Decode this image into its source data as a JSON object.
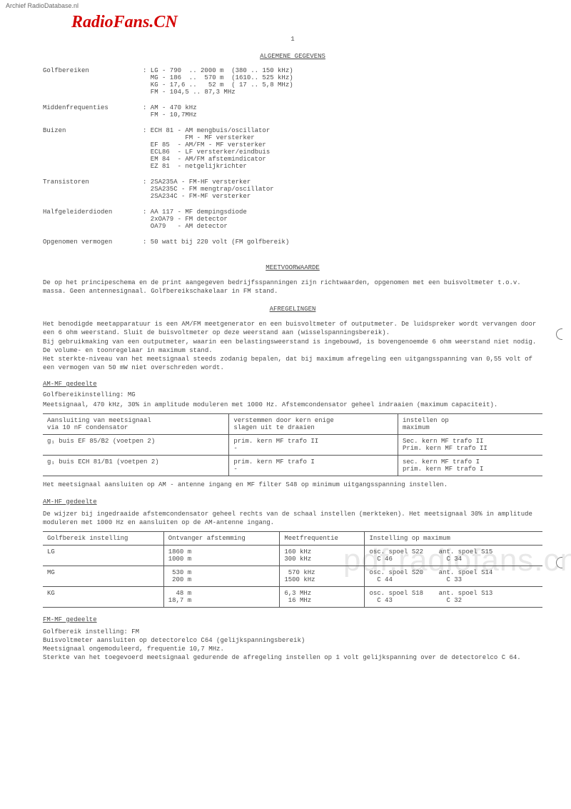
{
  "header": {
    "archief": "Archief RadioDatabase.nl",
    "radiofans": "RadioFans.CN",
    "pagenum": "1"
  },
  "watermark": "pdf.radiofans.cn",
  "sections": {
    "algemene": "ALGEMENE GEGEVENS",
    "meetvoorwaarde": "MEETVOORWAARDE",
    "afregelingen": "AFREGELINGEN"
  },
  "specs": [
    {
      "label": "Golfbereiken",
      "vals": ": LG - 790  .. 2000 m  (380 .. 150 kHz)\n  MG - 186  ..  570 m  (1610.. 525 kHz)\n  KG - 17,6 ..   52 m  ( 17 .. 5,8 MHz)\n  FM - 104,5 .. 87,3 MHz"
    },
    {
      "label": "Middenfrequenties",
      "vals": ": AM - 470 kHz\n  FM - 10,7MHz"
    },
    {
      "label": "Buizen",
      "vals": ": ECH 81 - AM mengbuis/oscillator\n           FM - MF versterker\n  EF 85  - AM/FM - MF versterker\n  ECL86  - LF versterker/eindbuis\n  EM 84  - AM/FM afstemindicator\n  EZ 81  - netgelijkrichter"
    },
    {
      "label": "Transistoren",
      "vals": ": 2SA235A - FM-HF versterker\n  2SA235C - FM mengtrap/oscillator\n  2SA234C - FM-MF versterker"
    },
    {
      "label": "Halfgeleiderdioden",
      "vals": ": AA 117 - MF dempingsdiode\n  2xOA79 - FM detector\n  OA79   - AM detector"
    },
    {
      "label": "Opgenomen vermogen",
      "vals": ": 50 watt bij 220 volt (FM golfbereik)"
    }
  ],
  "meet_para": "De op het principeschema en de print aangegeven bedrijfsspanningen zijn richtwaarden, opgenomen met een buisvoltmeter t.o.v. massa. Geen antennesignaal. Golfbereikschakelaar in FM stand.",
  "afr_para": "Het benodigde meetapparatuur is een AM/FM meetgenerator en een buisvoltmeter of outputmeter. De luidspreker wordt vervangen door een 6 ohm weerstand. Sluit de buisvoltmeter op deze weerstand aan (wisselspanningsbereik).\nBij gebruikmaking van een outputmeter, waarin een belastingsweerstand is ingebouwd, is bovengenoemde 6 ohm weerstand niet nodig.\nDe volume- en toonregelaar in maximum stand.\nHet sterkte-niveau van het meetsignaal steeds zodanig bepalen, dat bij maximum afregeling een uitgangsspanning van 0,55 volt of een vermogen van 50 mW niet overschreden wordt.",
  "ammf": {
    "heading": "AM-MF gedeelte",
    "line1": "Golfbereikinstelling: MG",
    "line2": "Meetsignaal, 470 kHz, 30% in amplitude moduleren met 1000 Hz. Afstemcondensator geheel indraaien (maximum capaciteit).",
    "table": {
      "headers": [
        "Aansluiting van meetsignaal\nvia 10 nF condensator",
        "verstemmen door kern enige\nslagen uit te draaien",
        "instellen op\nmaximum"
      ],
      "rows": [
        [
          "g₁ buis EF 85/B2 (voetpen 2)",
          "prim. kern MF trafo II\n-",
          "Sec. kern MF trafo II\nPrim. kern MF trafo II"
        ],
        [
          "g₁ buis ECH 81/B1 (voetpen 2)",
          "prim. kern MF trafo I\n-",
          "sec. kern MF trafo I\nprim. kern MF trafo I"
        ]
      ]
    },
    "after": "Het meetsignaal aansluiten op AM - antenne ingang en MF filter S48 op minimum uitgangsspanning instellen."
  },
  "amhf": {
    "heading": "AM-HF gedeelte",
    "para": "De wijzer bij ingedraaide afstemcondensator geheel rechts van de schaal instellen (merkteken). Het meetsignaal 30% in amplitude moduleren met 1000 Hz en aansluiten op de AM-antenne ingang.",
    "table": {
      "headers": [
        "Golfbereik instelling",
        "Ontvanger afstemming",
        "Meetfrequentie",
        "Instelling op maximum"
      ],
      "rows": [
        [
          "LG",
          "1860 m\n1000 m",
          "160 kHz\n300 kHz",
          "osc. spoel S22    ant. spoel S15\n  C 46              C 34"
        ],
        [
          "MG",
          " 530 m\n 200 m",
          " 570 kHz\n1500 kHz",
          "osc. spoel S20    ant. spoel S14\n  C 44              C 33"
        ],
        [
          "KG",
          "  48 m\n18,7 m",
          "6,3 MHz\n 16 MHz",
          "osc. spoel S18    ant. spoel S13\n  C 43              C 32"
        ]
      ]
    }
  },
  "fmmf": {
    "heading": "FM-MF gedeelte",
    "lines": "Golfbereik instelling: FM\nBuisvoltmeter aansluiten op detectorelco C64 (gelijkspanningsbereik)\nMeetsignaal ongemoduleerd, frequentie 10,7 MHz.\nSterkte van het toegevoerd meetsignaal gedurende de afregeling instellen op 1 volt gelijkspanning over de detectorelco C 64."
  }
}
